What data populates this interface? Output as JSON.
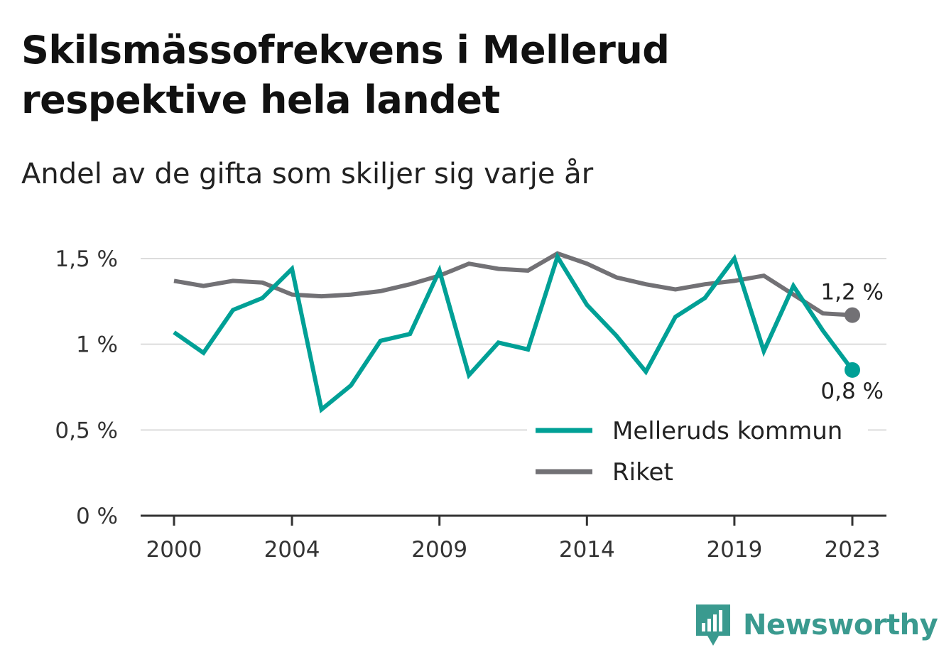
{
  "header": {
    "title": "Skilsmässofrekvens i Mellerud respektive hela landet",
    "subtitle": "Andel av de gifta som skiljer sig varje år"
  },
  "brand": {
    "name": "Newsworthy",
    "color": "#3a9a8f"
  },
  "chart_data": {
    "type": "line",
    "title": "Skilsmässofrekvens i Mellerud respektive hela landet",
    "subtitle": "Andel av de gifta som skiljer sig varje år",
    "x": [
      2000,
      2001,
      2002,
      2003,
      2004,
      2005,
      2006,
      2007,
      2008,
      2009,
      2010,
      2011,
      2012,
      2013,
      2014,
      2015,
      2016,
      2017,
      2018,
      2019,
      2020,
      2021,
      2022,
      2023
    ],
    "x_ticks": [
      "2000",
      "2004",
      "2009",
      "2014",
      "2019",
      "2023"
    ],
    "ylim": [
      0,
      1.5
    ],
    "y_ticks": [
      {
        "value": 0,
        "label": "0 %"
      },
      {
        "value": 0.5,
        "label": "0,5 %"
      },
      {
        "value": 1,
        "label": "1 %"
      },
      {
        "value": 1.5,
        "label": "1,5 %"
      }
    ],
    "grid": true,
    "legend_position": "bottom-right",
    "series": [
      {
        "name": "Melleruds kommun",
        "color": "#00a096",
        "values": [
          1.07,
          0.95,
          1.2,
          1.27,
          1.44,
          0.62,
          0.76,
          1.02,
          1.06,
          1.43,
          0.82,
          1.01,
          0.97,
          1.51,
          1.23,
          1.05,
          0.84,
          1.16,
          1.27,
          1.5,
          0.96,
          1.34,
          1.08,
          0.85
        ],
        "end_label": "0,8 %"
      },
      {
        "name": "Riket",
        "color": "#727175",
        "values": [
          1.37,
          1.34,
          1.37,
          1.36,
          1.29,
          1.28,
          1.29,
          1.31,
          1.35,
          1.4,
          1.47,
          1.44,
          1.43,
          1.53,
          1.47,
          1.39,
          1.35,
          1.32,
          1.35,
          1.37,
          1.4,
          1.29,
          1.18,
          1.17
        ],
        "end_label": "1,2 %"
      }
    ]
  }
}
